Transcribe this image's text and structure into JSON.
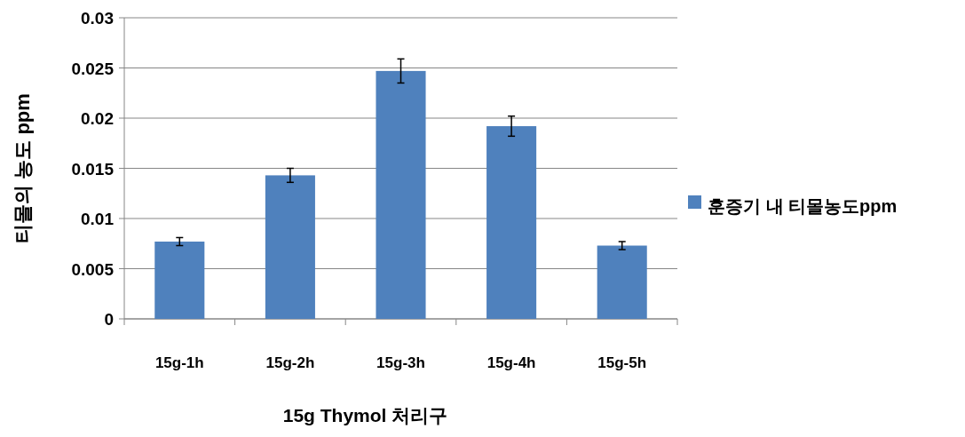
{
  "chart_data": {
    "type": "bar",
    "xlabel": "15g Thymol 처리구",
    "ylabel": "티몰의 농도 ppm",
    "categories": [
      "15g-1h",
      "15g-2h",
      "15g-3h",
      "15g-4h",
      "15g-5h"
    ],
    "series": [
      {
        "name": "훈증기 내 티몰농도ppm",
        "color": "#4f81bd",
        "values": [
          0.0077,
          0.0143,
          0.0247,
          0.0192,
          0.0073
        ],
        "errors": [
          0.0004,
          0.0007,
          0.0012,
          0.001,
          0.0004
        ]
      }
    ],
    "ylim": [
      0,
      0.03
    ],
    "yticks": [
      0,
      0.005,
      0.01,
      0.015,
      0.02,
      0.025,
      0.03
    ],
    "grid": "y",
    "legend": "right"
  }
}
